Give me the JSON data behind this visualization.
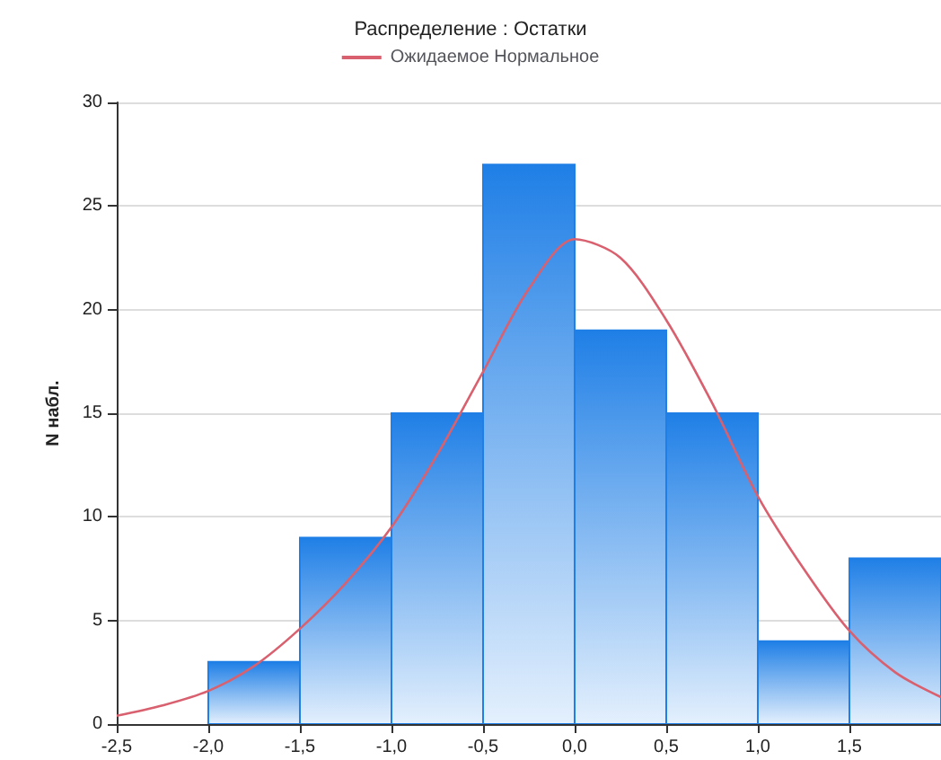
{
  "chart_data": {
    "type": "histogram",
    "title": "Распределение : Остатки",
    "ylabel": "N набл.",
    "bins": [
      -2.0,
      -1.5,
      -1.0,
      -0.5,
      0.0,
      0.5,
      1.0,
      1.5,
      2.0
    ],
    "values": [
      3,
      9,
      15,
      27,
      19,
      15,
      4,
      8
    ],
    "color": "#1f7fe6",
    "series": [
      {
        "type": "line",
        "name": "Ожидаемое Нормальное",
        "color": "#d9606e",
        "marker": "none",
        "x": [
          -2.5,
          -2.25,
          -2.0,
          -1.75,
          -1.5,
          -1.25,
          -1.0,
          -0.75,
          -0.5,
          -0.25,
          0.0,
          0.25,
          0.5,
          0.75,
          1.0,
          1.25,
          1.5,
          1.75,
          2.0
        ],
        "values": [
          0.4,
          0.9,
          1.6,
          2.8,
          4.6,
          6.8,
          9.5,
          13,
          17,
          21,
          23.4,
          22.5,
          19.5,
          15.5,
          11,
          7.5,
          4.5,
          2.5,
          1.3
        ]
      }
    ],
    "xlim": [
      -2.5,
      2.0
    ],
    "xticks": [
      {
        "value": -2.5,
        "label": "-2,5"
      },
      {
        "value": -2.0,
        "label": "-2,0"
      },
      {
        "value": -1.5,
        "label": "-1,5"
      },
      {
        "value": -1.0,
        "label": "-1,0"
      },
      {
        "value": -0.5,
        "label": "-0,5"
      },
      {
        "value": 0.0,
        "label": "0,0"
      },
      {
        "value": 0.5,
        "label": "0,5"
      },
      {
        "value": 1.0,
        "label": "1,0"
      },
      {
        "value": 1.5,
        "label": "1,5"
      }
    ],
    "ylim": [
      0,
      30
    ],
    "yticks": [
      0,
      5,
      10,
      15,
      20,
      25,
      30
    ],
    "grid": "y",
    "legend": "top"
  }
}
